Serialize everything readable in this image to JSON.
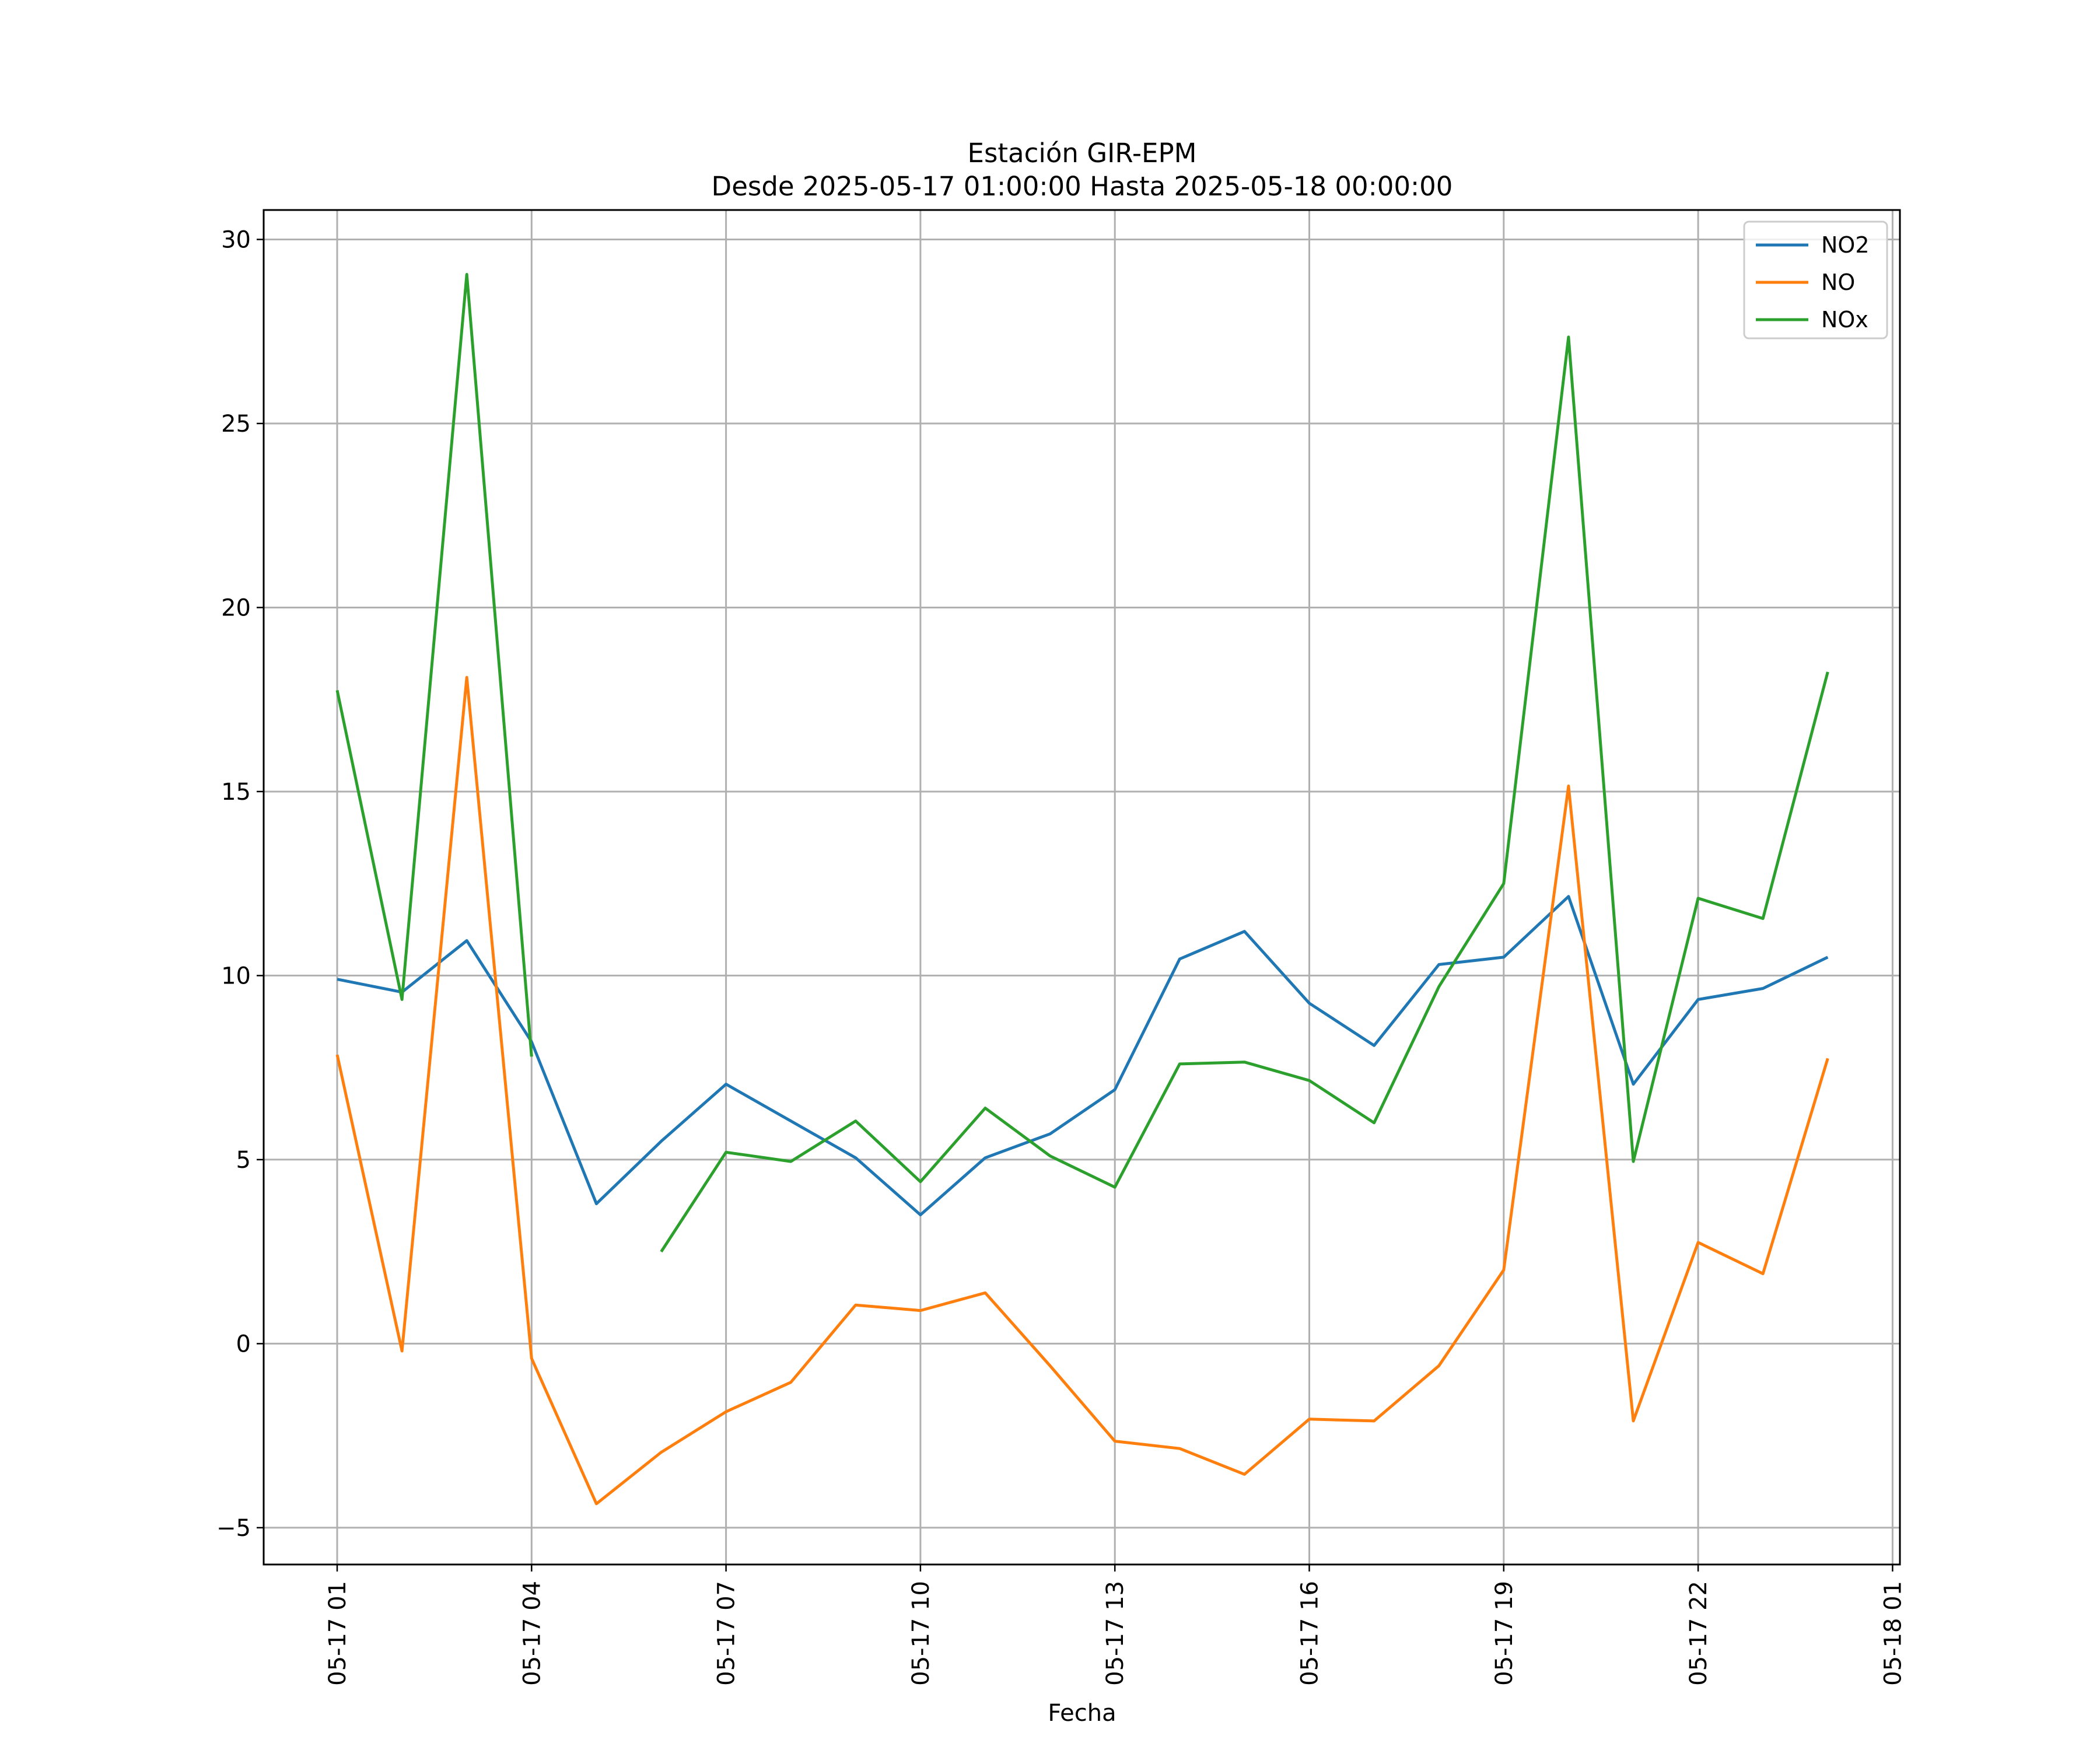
{
  "chart_data": {
    "type": "line",
    "title": "Estación GIR-EPM",
    "subtitle": "Desde 2025-05-17 01:00:00 Hasta 2025-05-18 00:00:00",
    "xlabel": "Fecha",
    "ylabel": "",
    "x": [
      "05-17 01",
      "05-17 02",
      "05-17 03",
      "05-17 04",
      "05-17 05",
      "05-17 06",
      "05-17 07",
      "05-17 08",
      "05-17 09",
      "05-17 10",
      "05-17 11",
      "05-17 12",
      "05-17 13",
      "05-17 14",
      "05-17 15",
      "05-17 16",
      "05-17 17",
      "05-17 18",
      "05-17 19",
      "05-17 20",
      "05-17 21",
      "05-17 22",
      "05-17 23",
      "05-18 00"
    ],
    "x_ticks": [
      "05-17 01",
      "05-17 04",
      "05-17 07",
      "05-17 10",
      "05-17 13",
      "05-17 16",
      "05-17 19",
      "05-17 22",
      "05-18 01"
    ],
    "y_ticks": [
      -5,
      0,
      5,
      10,
      15,
      20,
      25,
      30
    ],
    "y_tick_labels": [
      "−5",
      "0",
      "5",
      "10",
      "15",
      "20",
      "25",
      "30"
    ],
    "ylim": [
      -6.0,
      30.8
    ],
    "grid": true,
    "legend_position": "top-right",
    "series": [
      {
        "name": "NO2",
        "color": "#1f77b4",
        "values": [
          9.9,
          9.55,
          10.95,
          8.2,
          3.8,
          5.5,
          7.05,
          6.05,
          5.05,
          3.5,
          5.05,
          5.7,
          6.9,
          10.45,
          11.2,
          9.25,
          8.1,
          10.3,
          10.5,
          12.15,
          7.05,
          9.35,
          9.65,
          10.5
        ]
      },
      {
        "name": "NO",
        "color": "#ff7f0e",
        "values": [
          7.85,
          -0.2,
          18.1,
          -0.4,
          -4.35,
          -2.95,
          -1.85,
          -1.05,
          1.05,
          0.9,
          1.38,
          -0.6,
          -2.65,
          -2.85,
          -3.55,
          -2.05,
          -2.1,
          -0.6,
          2.0,
          15.15,
          -2.1,
          2.75,
          1.9,
          7.75
        ]
      },
      {
        "name": "NOx",
        "color": "#2ca02c",
        "values": [
          17.75,
          9.35,
          29.05,
          7.8,
          null,
          2.5,
          5.2,
          4.95,
          6.05,
          4.4,
          6.4,
          5.1,
          4.25,
          7.6,
          7.65,
          7.15,
          6.0,
          9.7,
          12.5,
          27.35,
          4.95,
          12.1,
          11.55,
          18.25
        ]
      }
    ]
  }
}
